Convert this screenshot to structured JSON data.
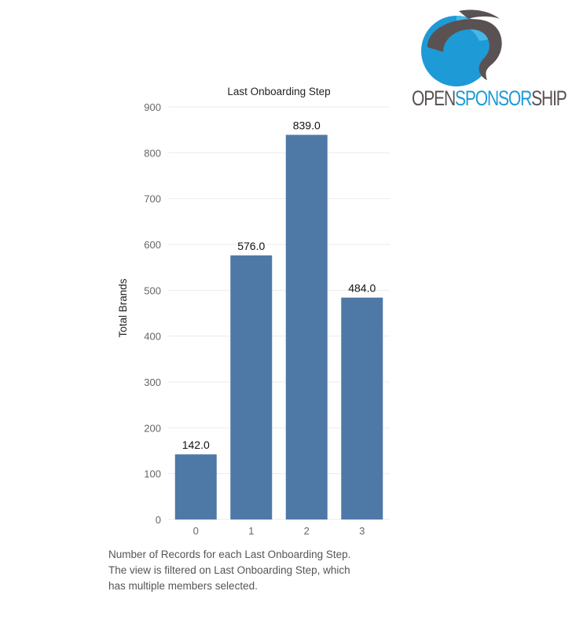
{
  "chart_data": {
    "type": "bar",
    "title": "Last Onboarding Step",
    "xlabel": "",
    "ylabel": "Total Brands",
    "categories": [
      "0",
      "1",
      "2",
      "3"
    ],
    "values": [
      142,
      576,
      839,
      484
    ],
    "value_labels": [
      "142.0",
      "576.0",
      "839.0",
      "484.0"
    ],
    "ylim": [
      0,
      900
    ],
    "yticks": [
      0,
      100,
      200,
      300,
      400,
      500,
      600,
      700,
      800,
      900
    ],
    "grid": true,
    "bar_color": "#4e79a7"
  },
  "caption": {
    "line1": "Number of Records for each Last Onboarding Step.",
    "line2": "The view is filtered on Last Onboarding Step, which",
    "line3": "has multiple members selected."
  },
  "logo": {
    "part1": "OPEN",
    "part2": "SPONSOR",
    "part3": "SHIP",
    "colors": {
      "dark": "#5a5252",
      "blue": "#1e9ad6"
    }
  }
}
